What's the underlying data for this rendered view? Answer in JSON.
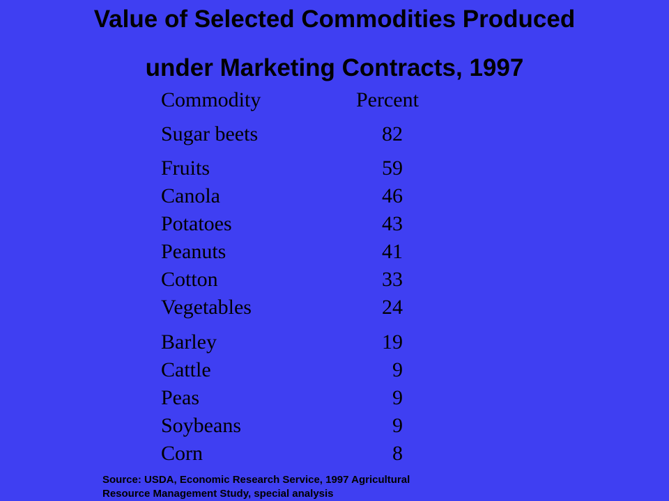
{
  "title": {
    "line1": "Value of Selected Commodities Produced",
    "line2": "under Marketing Contracts, 1997"
  },
  "table": {
    "headers": {
      "commodity": "Commodity",
      "percent": "Percent"
    },
    "rows": [
      {
        "commodity": "Sugar beets",
        "percent": "82"
      },
      {
        "commodity": "Fruits",
        "percent": "59"
      },
      {
        "commodity": "Canola",
        "percent": "46"
      },
      {
        "commodity": "Potatoes",
        "percent": "43"
      },
      {
        "commodity": "Peanuts",
        "percent": "41"
      },
      {
        "commodity": "Cotton",
        "percent": "33"
      },
      {
        "commodity": "Vegetables",
        "percent": "24"
      },
      {
        "commodity": "Barley",
        "percent": "19"
      },
      {
        "commodity": "Cattle",
        "percent": "9"
      },
      {
        "commodity": "Peas",
        "percent": "9"
      },
      {
        "commodity": "Soybeans",
        "percent": "9"
      },
      {
        "commodity": "Corn",
        "percent": "8"
      }
    ]
  },
  "source": {
    "line1": "Source: USDA, Economic Research Service, 1997 Agricultural",
    "line2": "Resource Management Study, special analysis"
  },
  "colors": {
    "background": "#3f3ff2",
    "text": "#000000"
  }
}
